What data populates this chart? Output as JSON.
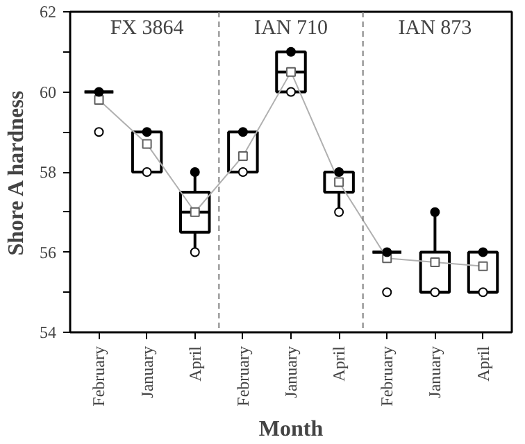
{
  "chart_data": {
    "type": "box",
    "xlabel": "Month",
    "ylabel": "Shore A hardness",
    "color": "#000000",
    "categories": [
      "February",
      "January",
      "April",
      "February",
      "January",
      "April",
      "February",
      "January",
      "April"
    ],
    "boxes": [
      {
        "low": 60,
        "q1": 60,
        "median": 60,
        "q3": 60,
        "high": 60,
        "outliers": [
          59
        ]
      },
      {
        "low": 58,
        "q1": 58,
        "median": 58,
        "q3": 59,
        "high": 59
      },
      {
        "low": 56,
        "q1": 56.5,
        "median": 57,
        "q3": 57.5,
        "high": 58
      },
      {
        "low": 58,
        "q1": 58,
        "median": 58,
        "q3": 59,
        "high": 59
      },
      {
        "low": 60,
        "q1": 60,
        "median": 60.5,
        "q3": 61,
        "high": 61
      },
      {
        "low": 57,
        "q1": 57.5,
        "median": 58,
        "q3": 58,
        "high": 58
      },
      {
        "low": 56,
        "q1": 56,
        "median": 56,
        "q3": 56,
        "high": 56,
        "outliers": [
          55
        ]
      },
      {
        "low": 55,
        "q1": 55,
        "median": 55,
        "q3": 56,
        "high": 57
      },
      {
        "low": 55,
        "q1": 55,
        "median": 55,
        "q3": 56,
        "high": 56
      }
    ],
    "series": [
      {
        "type": "line",
        "color": "#b0b0b0",
        "marker": "square",
        "values": [
          59.8,
          58.7,
          57.0,
          58.4,
          60.5,
          57.75,
          55.85,
          55.75,
          55.65
        ]
      },
      {
        "type": "scatter",
        "color": "#000000",
        "marker": "circle",
        "values": [
          60,
          59,
          58,
          59,
          61,
          58,
          56,
          57,
          56
        ]
      },
      {
        "type": "scatter",
        "color": "#ffffff",
        "marker": "circle",
        "values": [
          null,
          58,
          56,
          58,
          60,
          57,
          null,
          55,
          55
        ]
      }
    ],
    "annotations": [
      "FX 3864",
      "IAN 710",
      "IAN 873"
    ],
    "ylim": [
      54,
      62
    ],
    "yticks": [
      54,
      {
        "value": 55,
        "label": null
      },
      56,
      {
        "value": 57,
        "label": null
      },
      58,
      {
        "value": 59,
        "label": null
      },
      60,
      {
        "value": 61,
        "label": null
      },
      62
    ],
    "grid": false
  }
}
